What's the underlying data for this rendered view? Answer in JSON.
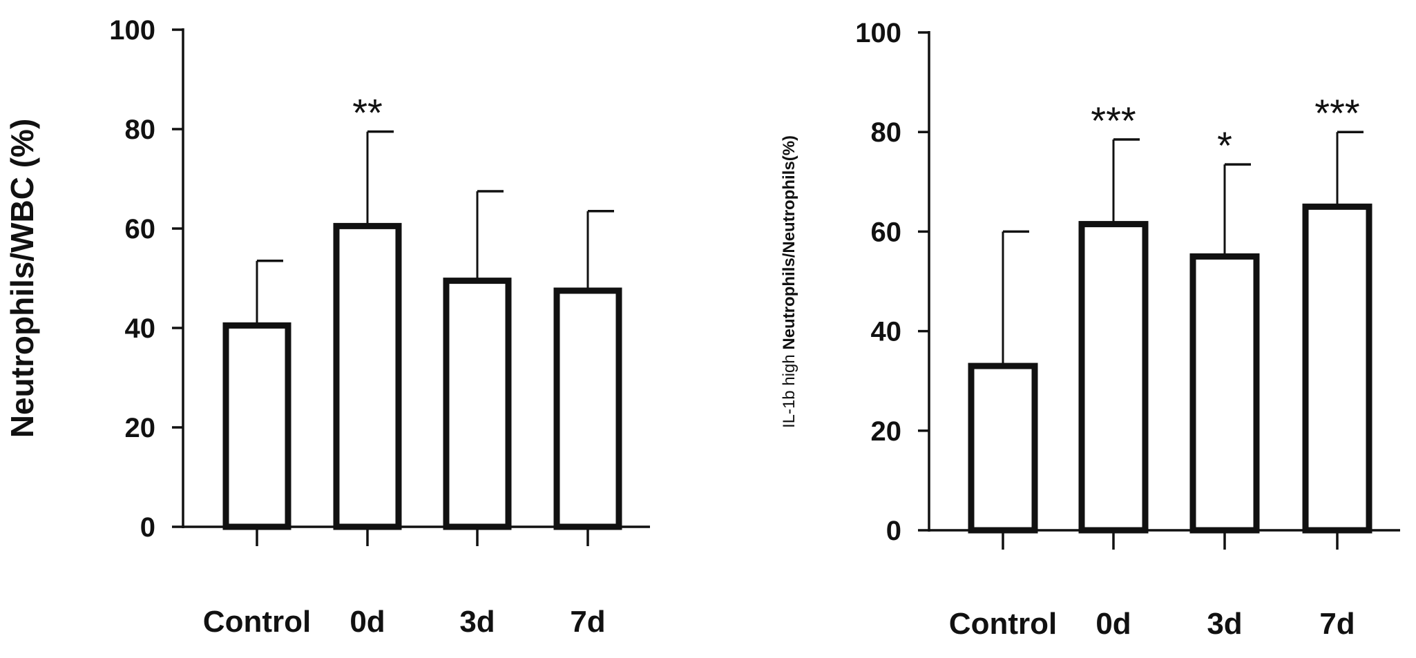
{
  "chart_data": [
    {
      "type": "bar",
      "ylabel": "Neutrophils/WBC (%)",
      "categories": [
        "Control",
        "0d",
        "3d",
        "7d"
      ],
      "values": [
        40.5,
        60.5,
        49.5,
        47.5
      ],
      "error_upper": [
        53.5,
        79.5,
        67.5,
        63.5
      ],
      "significance": [
        "",
        "**",
        "",
        ""
      ],
      "ylim": [
        0,
        100
      ],
      "yticks": [
        0,
        20,
        40,
        60,
        80,
        100
      ],
      "grid": false,
      "legend": "none"
    },
    {
      "type": "bar",
      "ylabel": {
        "prefix": "IL-1b high",
        "main": "Neutrophils/Neutrophils(%)"
      },
      "categories": [
        "Control",
        "0d",
        "3d",
        "7d"
      ],
      "values": [
        33,
        61.5,
        55,
        65
      ],
      "error_upper": [
        60,
        78.5,
        73.5,
        80
      ],
      "significance": [
        "",
        "***",
        "*",
        "***"
      ],
      "ylim": [
        0,
        100
      ],
      "yticks": [
        0,
        20,
        40,
        60,
        80,
        100
      ],
      "grid": false,
      "legend": "none"
    }
  ]
}
